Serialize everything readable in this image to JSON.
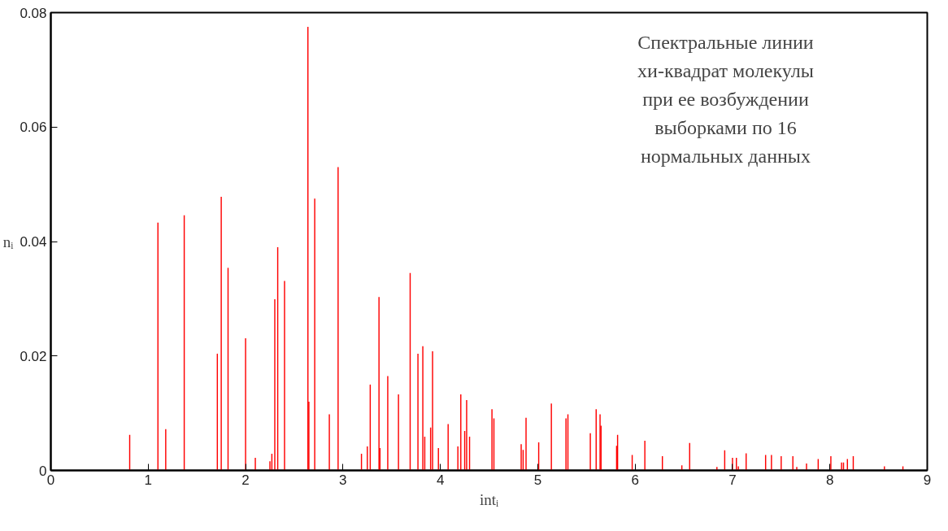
{
  "chart_data": {
    "type": "bar",
    "xlabel": "intᵢ",
    "ylabel": "nᵢ",
    "annotations": [
      "Спектральные линии\nхи-квадрат молекулы\nпри ее возбуждении\nвыборками по 16\nнормальных данных"
    ],
    "x": [
      0.81,
      1.1,
      1.18,
      1.37,
      1.71,
      1.75,
      1.82,
      2.0,
      2.1,
      2.25,
      2.27,
      2.3,
      2.33,
      2.4,
      2.64,
      2.65,
      2.71,
      2.86,
      2.95,
      3.19,
      3.25,
      3.28,
      3.37,
      3.38,
      3.46,
      3.57,
      3.69,
      3.77,
      3.82,
      3.84,
      3.9,
      3.92,
      3.98,
      4.08,
      4.18,
      4.21,
      4.25,
      4.27,
      4.3,
      4.53,
      4.55,
      4.83,
      4.85,
      4.88,
      5.01,
      5.14,
      5.29,
      5.31,
      5.54,
      5.6,
      5.64,
      5.65,
      5.81,
      5.82,
      5.97,
      6.1,
      6.28,
      6.48,
      6.56,
      6.84,
      6.92,
      7.0,
      7.04,
      7.06,
      7.14,
      7.34,
      7.4,
      7.5,
      7.62,
      7.66,
      7.76,
      7.88,
      8.01,
      8.12,
      8.14,
      8.18,
      8.24,
      8.56,
      8.75
    ],
    "values": [
      0.0062,
      0.0433,
      0.0072,
      0.0446,
      0.0204,
      0.0478,
      0.0354,
      0.0231,
      0.0022,
      0.0016,
      0.0029,
      0.0299,
      0.039,
      0.0331,
      0.0775,
      0.012,
      0.0475,
      0.0098,
      0.053,
      0.0029,
      0.0042,
      0.015,
      0.0303,
      0.0039,
      0.0165,
      0.0133,
      0.0345,
      0.0204,
      0.0217,
      0.0059,
      0.0075,
      0.0208,
      0.0039,
      0.0081,
      0.0042,
      0.0133,
      0.0069,
      0.0123,
      0.0059,
      0.0107,
      0.0091,
      0.0046,
      0.0036,
      0.0092,
      0.0049,
      0.0117,
      0.0091,
      0.0098,
      0.0065,
      0.0107,
      0.0098,
      0.0078,
      0.0043,
      0.0062,
      0.0027,
      0.0052,
      0.0025,
      0.0009,
      0.0048,
      0.0006,
      0.0035,
      0.0022,
      0.0022,
      0.0007,
      0.003,
      0.0027,
      0.0027,
      0.0025,
      0.0025,
      0.0006,
      0.0012,
      0.002,
      0.0025,
      0.0014,
      0.0014,
      0.002,
      0.0025,
      0.0007,
      0.0007
    ],
    "color": "#ff0000",
    "xlim": [
      0,
      9
    ],
    "xticks": [
      0,
      1,
      2,
      3,
      4,
      5,
      6,
      7,
      8,
      9
    ],
    "ylim": [
      0,
      0.08
    ],
    "yticks": [
      0,
      0.02,
      0.04,
      0.06,
      0.08
    ]
  }
}
